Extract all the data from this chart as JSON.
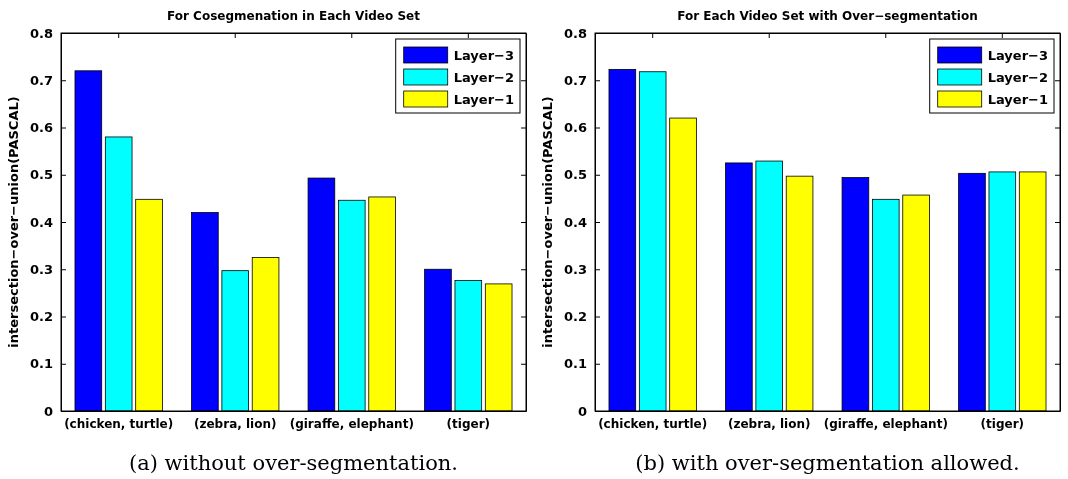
{
  "chart_data": [
    {
      "type": "bar",
      "title": "For Cosegmenation in Each Video Set",
      "ylabel": "intersection−over−union(PASCAL)",
      "categories": [
        "(chicken, turtle)",
        "(zebra, lion)",
        "(giraffe, elephant)",
        "(tiger)"
      ],
      "series": [
        {
          "name": "Layer−3",
          "color": "#0000ff",
          "values": [
            0.72,
            0.42,
            0.493,
            0.3
          ]
        },
        {
          "name": "Layer−2",
          "color": "#00ffff",
          "values": [
            0.58,
            0.297,
            0.446,
            0.276
          ]
        },
        {
          "name": "Layer−1",
          "color": "#ffff00",
          "values": [
            0.448,
            0.325,
            0.453,
            0.269
          ]
        }
      ],
      "ylim": [
        0,
        0.8
      ],
      "yticks": [
        {
          "value": 0,
          "label": "0"
        },
        0.1,
        0.2,
        0.3,
        0.4,
        0.5,
        0.6,
        0.7,
        0.8
      ],
      "legend": "top right",
      "grid": false,
      "annotations": [
        "(a)  without over-segmentation."
      ]
    },
    {
      "type": "bar",
      "title": "For Each Video Set with Over−segmentation",
      "ylabel": "intersection−over−union(PASCAL)",
      "categories": [
        "(chicken, turtle)",
        "(zebra, lion)",
        "(giraffe, elephant)",
        "(tiger)"
      ],
      "series": [
        {
          "name": "Layer−3",
          "color": "#0000ff",
          "values": [
            0.723,
            0.525,
            0.494,
            0.503
          ]
        },
        {
          "name": "Layer−2",
          "color": "#00ffff",
          "values": [
            0.718,
            0.529,
            0.448,
            0.506
          ]
        },
        {
          "name": "Layer−1",
          "color": "#ffff00",
          "values": [
            0.62,
            0.497,
            0.457,
            0.506
          ]
        }
      ],
      "ylim": [
        0,
        0.8
      ],
      "yticks": [
        {
          "value": 0,
          "label": "0"
        },
        0.1,
        0.2,
        0.3,
        0.4,
        0.5,
        0.6,
        0.7,
        0.8
      ],
      "legend": "top right",
      "grid": false,
      "annotations": [
        "(b)  with over-segmentation allowed."
      ]
    }
  ]
}
